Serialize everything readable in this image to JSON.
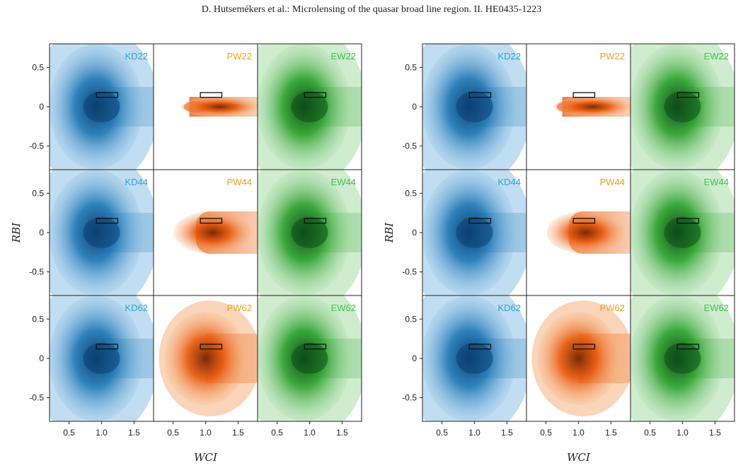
{
  "header": {
    "running_title": "D. Hutsemékers et al.: Microlensing of the quasar broad line region. II. HE0435-1223"
  },
  "colors": {
    "KD": "#1f77b4",
    "PW": "#e8590c",
    "EW": "#2ca02c",
    "KD_label": "#29a3e0",
    "PW_label": "#f0a020",
    "EW_label": "#3cc44a"
  },
  "chart_data": [
    {
      "type": "scatter",
      "title": "",
      "xlabel": "WCI",
      "ylabel": "RBI",
      "xlim": [
        0.2,
        1.8
      ],
      "ylim": [
        -0.8,
        0.8
      ],
      "xticks": [
        "0.5",
        "1.0",
        "1.5"
      ],
      "yticks": [
        "0.5",
        "0",
        "-0.5"
      ],
      "observed_box": {
        "x": [
          0.92,
          1.25
        ],
        "y": [
          0.12,
          0.18
        ]
      },
      "rows": [
        {
          "panels": [
            {
              "label": "KD22",
              "model": "KD",
              "spread": "wide"
            },
            {
              "label": "PW22",
              "model": "PW",
              "spread": "narrow"
            },
            {
              "label": "EW22",
              "model": "EW",
              "spread": "wide"
            }
          ]
        },
        {
          "panels": [
            {
              "label": "KD44",
              "model": "KD",
              "spread": "wide"
            },
            {
              "label": "PW44",
              "model": "PW",
              "spread": "medium"
            },
            {
              "label": "EW44",
              "model": "EW",
              "spread": "wide"
            }
          ]
        },
        {
          "panels": [
            {
              "label": "KD62",
              "model": "KD",
              "spread": "wide"
            },
            {
              "label": "PW62",
              "model": "PW",
              "spread": "broad"
            },
            {
              "label": "EW62",
              "model": "EW",
              "spread": "wide"
            }
          ]
        }
      ]
    },
    {
      "type": "scatter",
      "title": "",
      "xlabel": "WCI",
      "ylabel": "RBI",
      "xlim": [
        0.2,
        1.8
      ],
      "ylim": [
        -0.8,
        0.8
      ],
      "xticks": [
        "0.5",
        "1.0",
        "1.5"
      ],
      "yticks": [
        "0.5",
        "0",
        "-0.5"
      ],
      "observed_box": {
        "x": [
          0.92,
          1.25
        ],
        "y": [
          0.12,
          0.18
        ]
      },
      "rows": [
        {
          "panels": [
            {
              "label": "KD22",
              "model": "KD",
              "spread": "wide"
            },
            {
              "label": "PW22",
              "model": "PW",
              "spread": "narrow"
            },
            {
              "label": "EW22",
              "model": "EW",
              "spread": "wide"
            }
          ]
        },
        {
          "panels": [
            {
              "label": "KD44",
              "model": "KD",
              "spread": "wide"
            },
            {
              "label": "PW44",
              "model": "PW",
              "spread": "medium"
            },
            {
              "label": "EW44",
              "model": "EW",
              "spread": "wide"
            }
          ]
        },
        {
          "panels": [
            {
              "label": "KD62",
              "model": "KD",
              "spread": "wide"
            },
            {
              "label": "PW62",
              "model": "PW",
              "spread": "broad"
            },
            {
              "label": "EW62",
              "model": "EW",
              "spread": "wide"
            }
          ]
        }
      ]
    }
  ]
}
